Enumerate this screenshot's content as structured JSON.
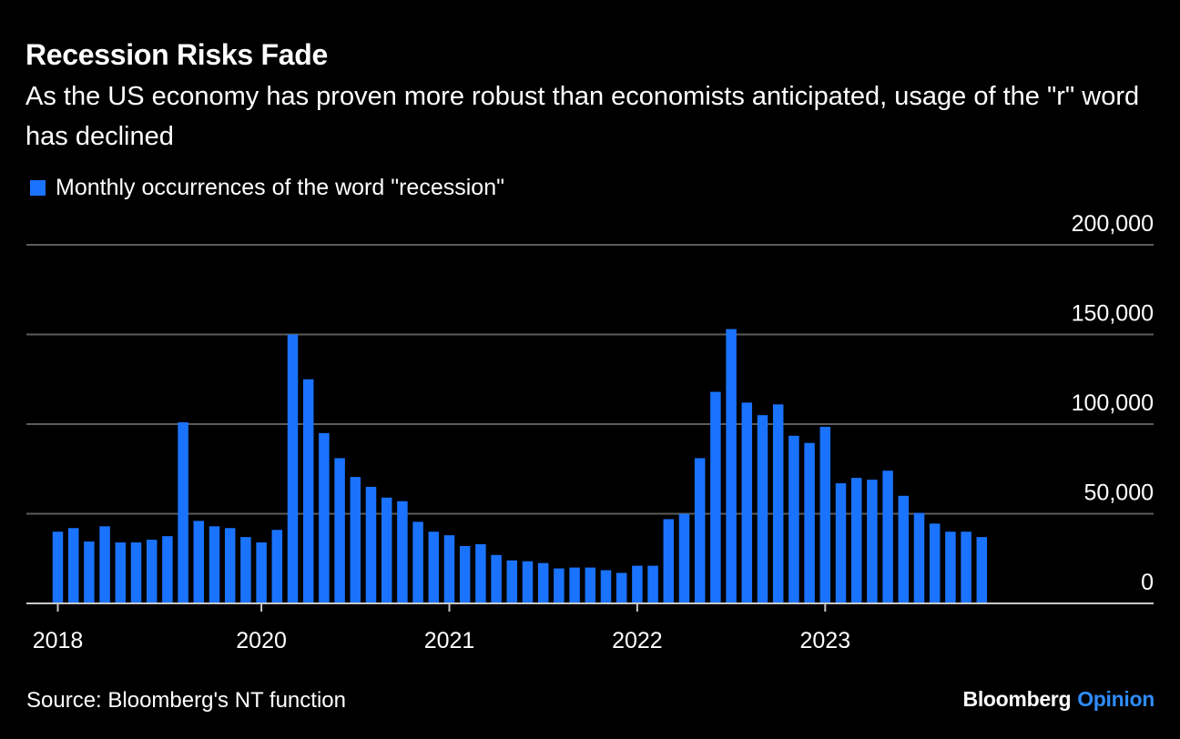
{
  "header": {
    "title": "Recession Risks Fade",
    "subtitle": "As the US economy has proven more robust than economists anticipated, usage of the \"r\" word has declined"
  },
  "legend": {
    "label": "Monthly occurrences of the word \"recession\""
  },
  "footer": {
    "source": "Source: Bloomberg's NT function",
    "brand": "Bloomberg",
    "brand_accent": "Opinion"
  },
  "colors": {
    "background": "#000000",
    "bar": "#1a73ff",
    "grid": "#5c5c5c",
    "text": "#ffffff",
    "brand_accent": "#2f8cff"
  },
  "chart_data": {
    "type": "bar",
    "title": "Recession Risks Fade",
    "subtitle": "As the US economy has proven more robust than economists anticipated, usage of the \"r\" word has declined",
    "series": [
      {
        "name": "Monthly occurrences of the word \"recession\"",
        "values": [
          40000,
          42000,
          34500,
          43000,
          34000,
          34000,
          35500,
          37500,
          101000,
          46000,
          43000,
          42000,
          37000,
          34000,
          41000,
          150000,
          125000,
          95000,
          81000,
          70500,
          65000,
          59000,
          57000,
          45500,
          40000,
          38000,
          32000,
          33000,
          27000,
          24000,
          23500,
          22500,
          19500,
          20000,
          20000,
          18500,
          17000,
          21000,
          21000,
          47000,
          50000,
          81000,
          118000,
          153000,
          112000,
          105000,
          111000,
          93500,
          89500,
          98500,
          67000,
          70000,
          69000,
          74000,
          60000,
          50500,
          44500,
          40000,
          40000,
          37000
        ]
      }
    ],
    "x_ticks": [
      "2018",
      "2020",
      "2021",
      "2022",
      "2023"
    ],
    "y_ticks": [
      "0",
      "50,000",
      "100,000",
      "150,000",
      "200,000"
    ],
    "ylim": [
      0,
      200000
    ],
    "y_axis_position": "right",
    "grid": true,
    "legend_position": "top-left"
  }
}
